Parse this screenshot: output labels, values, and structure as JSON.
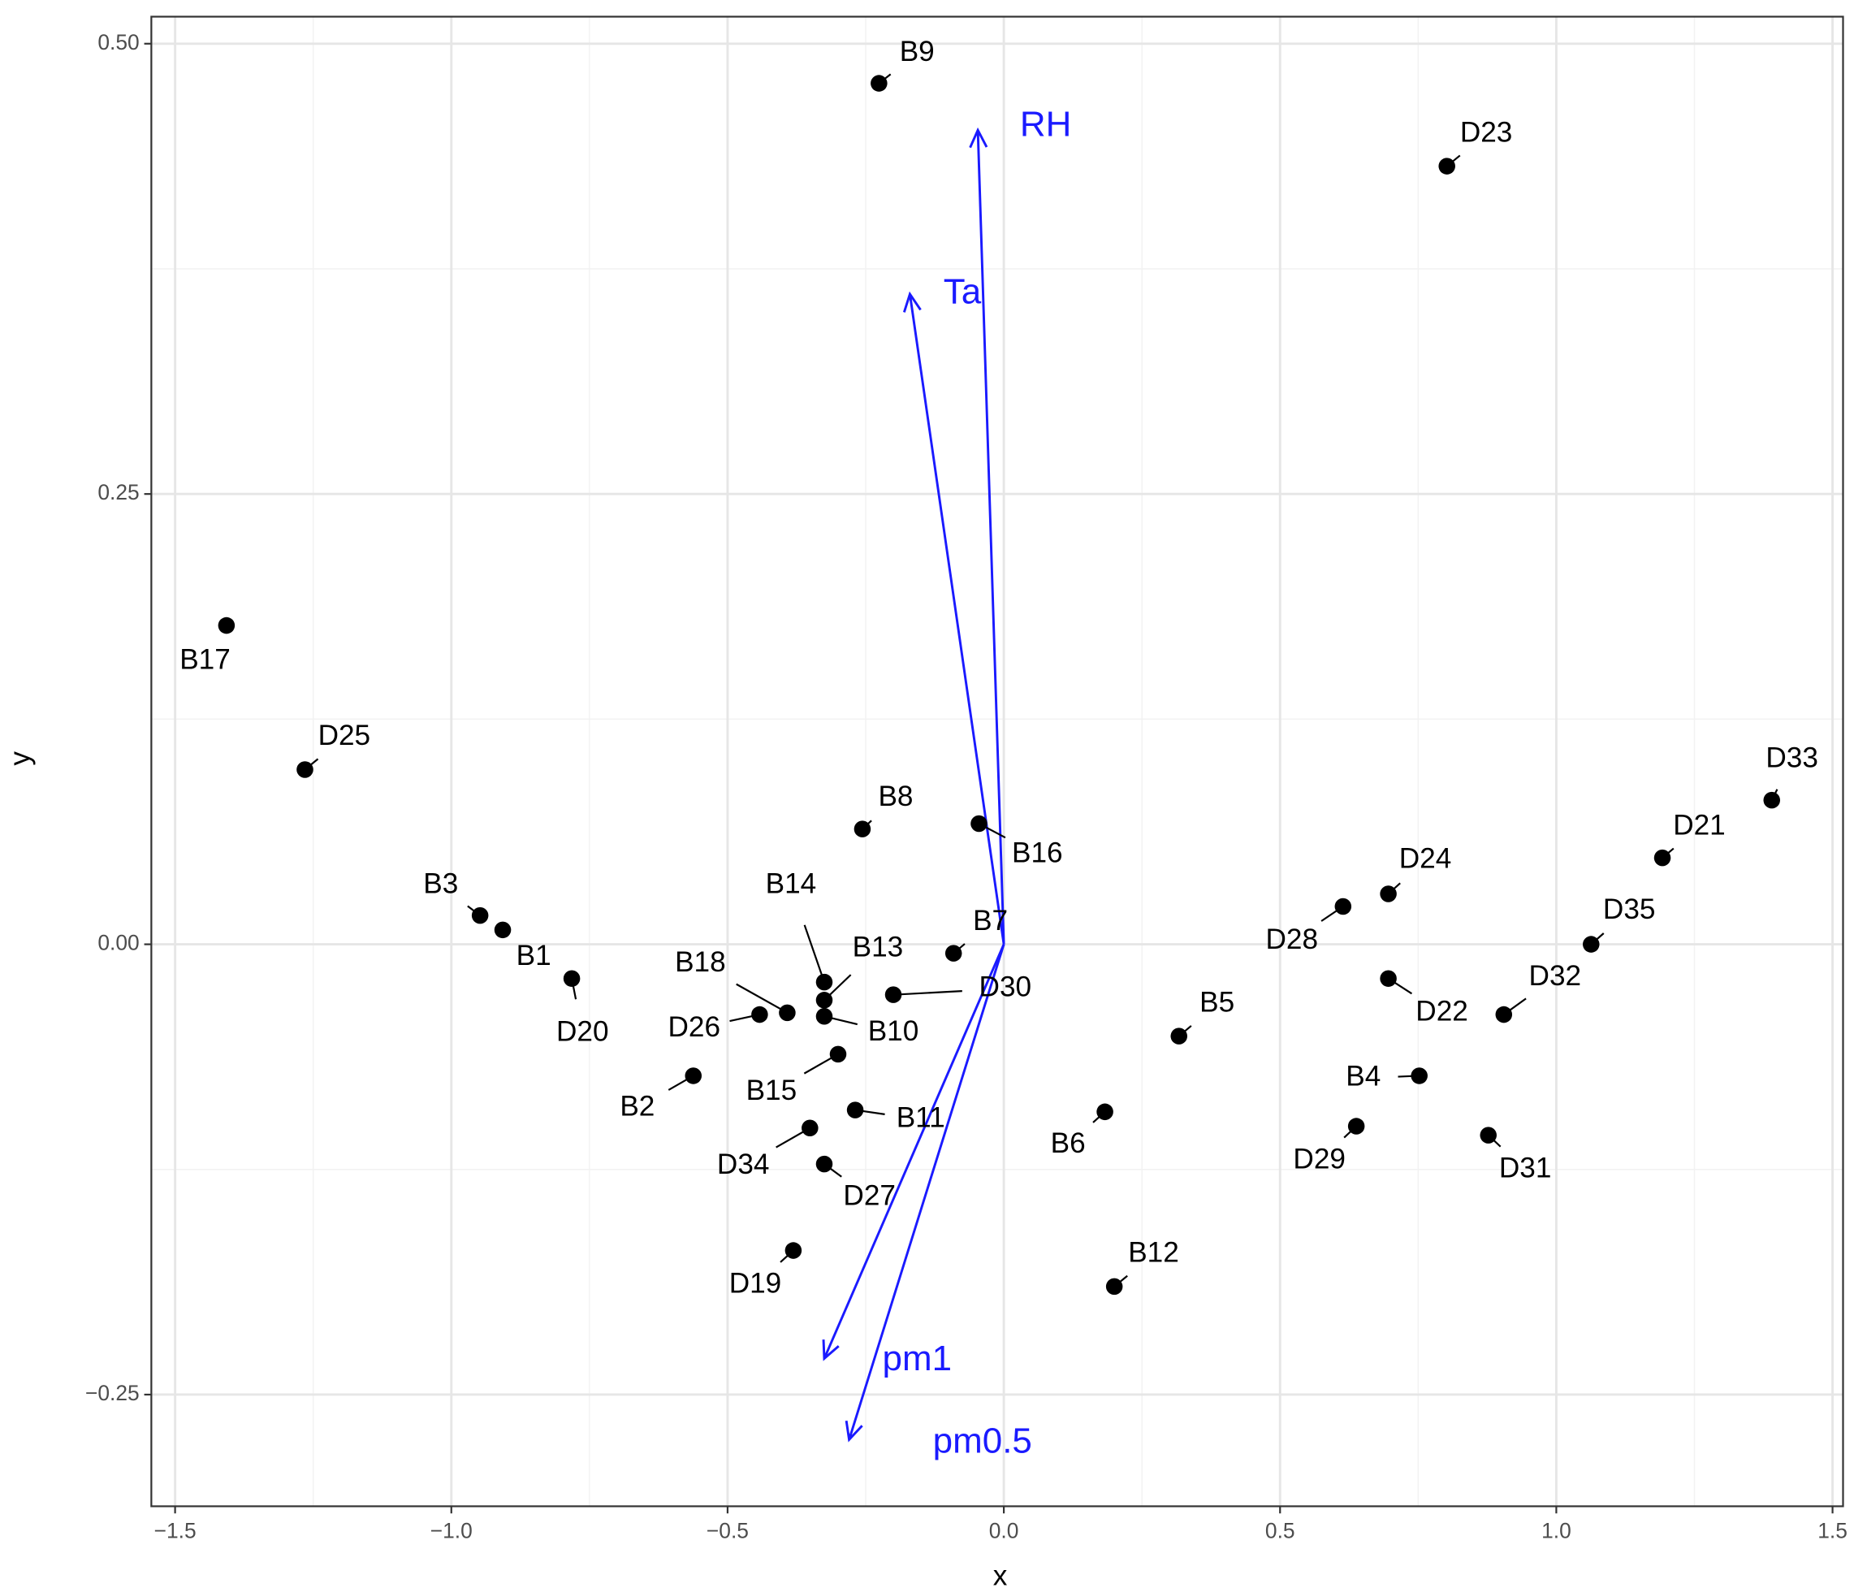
{
  "chart_data": {
    "type": "biplot",
    "x_label": "x",
    "y_label": "y",
    "xlim": [
      -1.543,
      1.519
    ],
    "ylim": [
      -0.312,
      0.515
    ],
    "xticks": [
      {
        "value": -1.5,
        "label": "−1.5"
      },
      {
        "value": -1.0,
        "label": "−1.0"
      },
      {
        "value": -0.5,
        "label": "−0.5"
      },
      {
        "value": 0,
        "label": "0.0"
      },
      0.5,
      {
        "value": 1.0,
        "label": "1.0"
      },
      1.5
    ],
    "yticks": [
      {
        "value": -0.25,
        "label": "−0.25"
      },
      {
        "value": 0,
        "label": "0.00"
      },
      0.25,
      {
        "value": 0.5,
        "label": "0.50"
      }
    ],
    "xminor": [
      -1.25,
      -0.75,
      -0.25,
      0.25,
      0.75,
      1.25
    ],
    "yminor": [
      -0.125,
      0.125,
      0.375
    ],
    "grid": true,
    "point_color": "#000000",
    "points": {
      "labels": [
        "B9",
        "D23",
        "B17",
        "D25",
        "B8",
        "B16",
        "B3",
        "B1",
        "D20",
        "B7",
        "B14",
        "B13",
        "B10",
        "B18",
        "D26",
        "D30",
        "B15",
        "B2",
        "B11",
        "D34",
        "D27",
        "D19",
        "B5",
        "B6",
        "B12",
        "D28",
        "D24",
        "D22",
        "B4",
        "D29",
        "D31",
        "D32",
        "D35",
        "D21",
        "D33"
      ],
      "x": [
        -0.226,
        0.802,
        -1.407,
        -1.265,
        -0.256,
        -0.045,
        -0.948,
        -0.907,
        -0.782,
        -0.091,
        -0.325,
        -0.325,
        -0.325,
        -0.392,
        -0.442,
        -0.2,
        -0.3,
        -0.562,
        -0.269,
        -0.351,
        -0.325,
        -0.381,
        0.317,
        0.183,
        0.2,
        0.614,
        0.696,
        0.696,
        0.752,
        0.638,
        0.877,
        0.905,
        1.063,
        1.192,
        1.39
      ],
      "y": [
        0.478,
        0.432,
        0.177,
        0.097,
        0.064,
        0.067,
        0.016,
        0.008,
        -0.019,
        -0.005,
        -0.021,
        -0.031,
        -0.04,
        -0.038,
        -0.039,
        -0.028,
        -0.061,
        -0.073,
        -0.092,
        -0.102,
        -0.122,
        -0.17,
        -0.051,
        -0.093,
        -0.19,
        0.021,
        0.028,
        -0.019,
        -0.073,
        -0.101,
        -0.106,
        -0.039,
        0.0,
        0.048,
        0.08
      ]
    },
    "arrow_color": "#1a1aff",
    "arrows": {
      "names": [
        "RH",
        "Ta",
        "pm1",
        "pm0.5"
      ],
      "x": [
        -0.047,
        -0.17,
        -0.325,
        -0.28
      ],
      "y": [
        0.452,
        0.361,
        -0.23,
        -0.275
      ]
    }
  }
}
